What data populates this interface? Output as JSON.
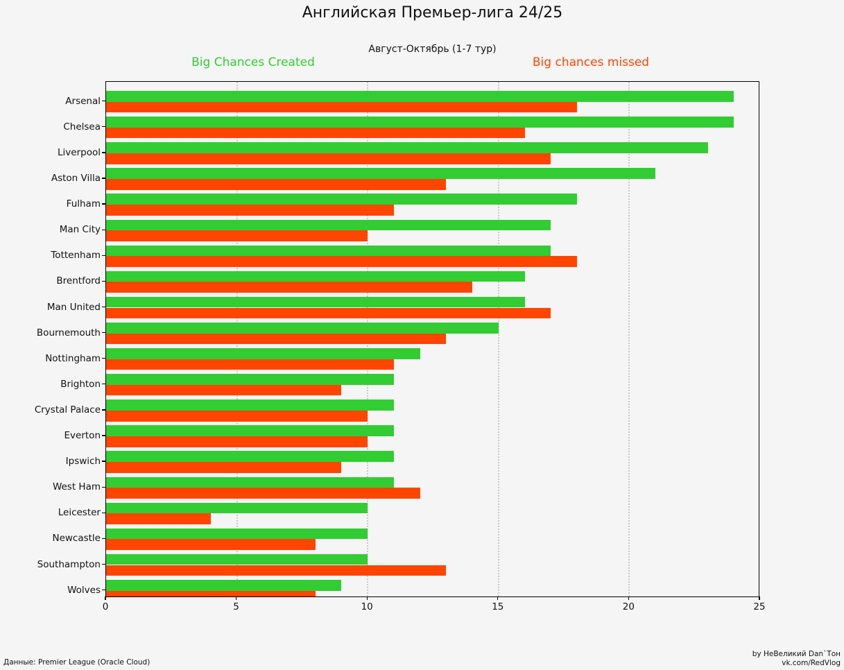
{
  "title": "Английская Премьер-лига 24/25",
  "subtitle": "Август-Октябрь (1-7 тур)",
  "legend": {
    "created_label": "Big Chances Created",
    "missed_label": "Big chances missed",
    "created_color": "#32CD32",
    "missed_color": "#FF4500"
  },
  "footer": {
    "source": "Данные: Premier League (Oracle Cloud)",
    "credit_line1": "by НеВеликий Dan`Тон",
    "credit_line2": "vk.com/RedVlog"
  },
  "chart_data": {
    "type": "bar",
    "orientation": "horizontal",
    "title": "Английская Премьер-лига 24/25",
    "subtitle": "Август-Октябрь (1-7 тур)",
    "categories": [
      "Arsenal",
      "Chelsea",
      "Liverpool",
      "Aston Villa",
      "Fulham",
      "Man City",
      "Tottenham",
      "Brentford",
      "Man United",
      "Bournemouth",
      "Nottingham",
      "Brighton",
      "Crystal Palace",
      "Everton",
      "Ipswich",
      "West Ham",
      "Leicester",
      "Newcastle",
      "Southampton",
      "Wolves"
    ],
    "series": [
      {
        "name": "Big Chances Created",
        "color": "#32CD32",
        "values": [
          24,
          24,
          23,
          21,
          18,
          17,
          17,
          16,
          16,
          15,
          12,
          11,
          11,
          11,
          11,
          11,
          10,
          10,
          10,
          9
        ]
      },
      {
        "name": "Big chances missed",
        "color": "#FF4500",
        "values": [
          18,
          16,
          17,
          13,
          11,
          10,
          18,
          14,
          17,
          13,
          11,
          9,
          10,
          10,
          9,
          12,
          4,
          8,
          13,
          8
        ]
      }
    ],
    "xlim": [
      0,
      25
    ],
    "xticks": [
      0,
      5,
      10,
      15,
      20,
      25
    ],
    "grid": "vertical-dotted",
    "legend_position": "top"
  }
}
